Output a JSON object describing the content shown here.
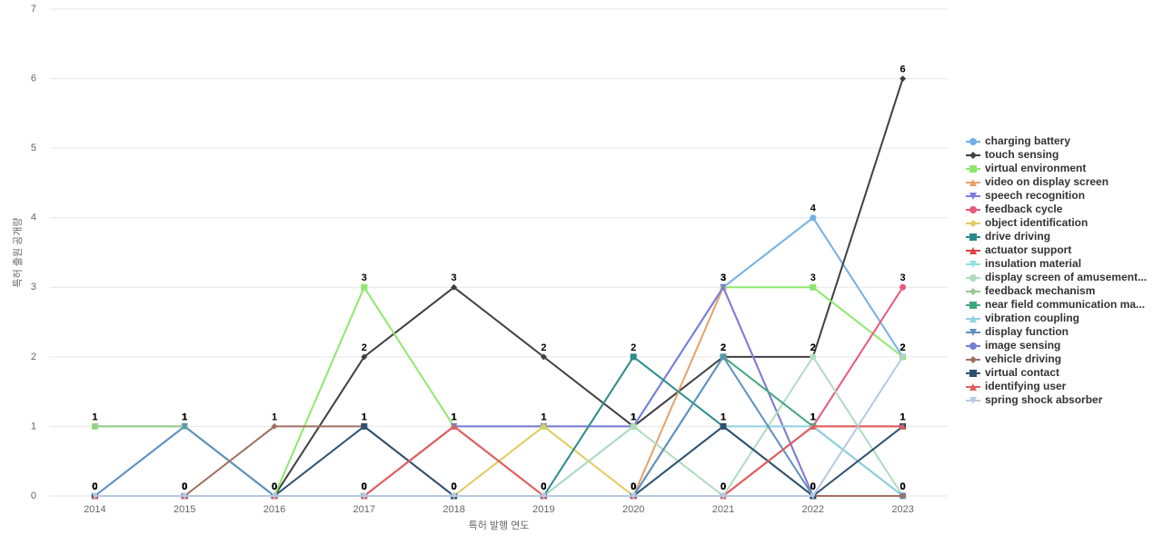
{
  "chart_data": {
    "type": "line",
    "x_label": "특허 발행 연도",
    "y_label": "특허 출원 공개량",
    "categories": [
      "2014",
      "2015",
      "2016",
      "2017",
      "2018",
      "2019",
      "2020",
      "2021",
      "2022",
      "2023"
    ],
    "ylim": [
      0,
      7
    ],
    "yticks": [
      0,
      1,
      2,
      3,
      4,
      5,
      6,
      7
    ],
    "grid": true,
    "legend": "right",
    "series": [
      {
        "name": "charging battery",
        "color": "#73b0e6",
        "marker": "circle",
        "values": [
          0,
          1,
          0,
          0,
          0,
          0,
          1,
          3,
          4,
          2
        ]
      },
      {
        "name": "touch sensing",
        "color": "#404040",
        "marker": "diamond",
        "values": [
          0,
          0,
          0,
          2,
          3,
          2,
          1,
          2,
          2,
          6
        ]
      },
      {
        "name": "virtual environment",
        "color": "#8ee86e",
        "marker": "square",
        "values": [
          1,
          1,
          0,
          3,
          1,
          1,
          1,
          3,
          3,
          2
        ]
      },
      {
        "name": "video on display screen",
        "color": "#e8a06a",
        "marker": "triangle",
        "values": [
          0,
          0,
          0,
          0,
          0,
          0,
          0,
          3,
          0,
          0
        ]
      },
      {
        "name": "speech recognition",
        "color": "#7b7bde",
        "marker": "down",
        "values": [
          0,
          0,
          0,
          0,
          1,
          1,
          1,
          3,
          0,
          0
        ]
      },
      {
        "name": "feedback cycle",
        "color": "#e85a7a",
        "marker": "circle",
        "values": [
          0,
          0,
          0,
          0,
          0,
          0,
          0,
          0,
          1,
          3
        ]
      },
      {
        "name": "object identification",
        "color": "#e0cc60",
        "marker": "diamond",
        "values": [
          0,
          0,
          0,
          0,
          0,
          1,
          0,
          0,
          0,
          0
        ]
      },
      {
        "name": "drive driving",
        "color": "#2a8c8c",
        "marker": "square",
        "values": [
          0,
          0,
          0,
          0,
          0,
          0,
          2,
          1,
          0,
          0
        ]
      },
      {
        "name": "actuator support",
        "color": "#dd4444",
        "marker": "triangle",
        "values": [
          0,
          0,
          0,
          0,
          1,
          0,
          0,
          0,
          1,
          1
        ]
      },
      {
        "name": "insulation material",
        "color": "#8de0e0",
        "marker": "down",
        "values": [
          0,
          0,
          0,
          0,
          0,
          0,
          0,
          0,
          0,
          0
        ]
      },
      {
        "name": "display screen of amusement...",
        "color": "#b0dcc0",
        "marker": "circle",
        "values": [
          0,
          0,
          0,
          0,
          0,
          0,
          1,
          0,
          2,
          0
        ]
      },
      {
        "name": "feedback mechanism",
        "color": "#98c890",
        "marker": "diamond",
        "values": [
          1,
          1,
          0,
          0,
          0,
          0,
          0,
          0,
          0,
          0
        ]
      },
      {
        "name": "near field communication ma...",
        "color": "#40a880",
        "marker": "square",
        "values": [
          0,
          0,
          0,
          0,
          0,
          0,
          0,
          2,
          1,
          0
        ]
      },
      {
        "name": "vibration coupling",
        "color": "#90d0e0",
        "marker": "triangle",
        "values": [
          0,
          0,
          0,
          0,
          0,
          0,
          0,
          1,
          1,
          0
        ]
      },
      {
        "name": "display function",
        "color": "#6090c0",
        "marker": "down",
        "values": [
          0,
          1,
          0,
          0,
          0,
          0,
          0,
          2,
          0,
          0
        ]
      },
      {
        "name": "image sensing",
        "color": "#7080d0",
        "marker": "circle",
        "values": [
          0,
          0,
          0,
          0,
          0,
          0,
          0,
          0,
          0,
          0
        ]
      },
      {
        "name": "vehicle driving",
        "color": "#a07060",
        "marker": "diamond",
        "values": [
          0,
          0,
          1,
          1,
          0,
          0,
          0,
          0,
          0,
          0
        ]
      },
      {
        "name": "virtual contact",
        "color": "#305070",
        "marker": "square",
        "values": [
          0,
          0,
          0,
          1,
          0,
          0,
          0,
          1,
          0,
          1
        ]
      },
      {
        "name": "identifying user",
        "color": "#e06060",
        "marker": "triangle",
        "values": [
          0,
          0,
          0,
          0,
          1,
          0,
          0,
          0,
          1,
          1
        ]
      },
      {
        "name": "spring shock absorber",
        "color": "#b8c8e0",
        "marker": "down",
        "values": [
          0,
          0,
          0,
          0,
          0,
          0,
          0,
          0,
          0,
          2
        ]
      }
    ]
  }
}
